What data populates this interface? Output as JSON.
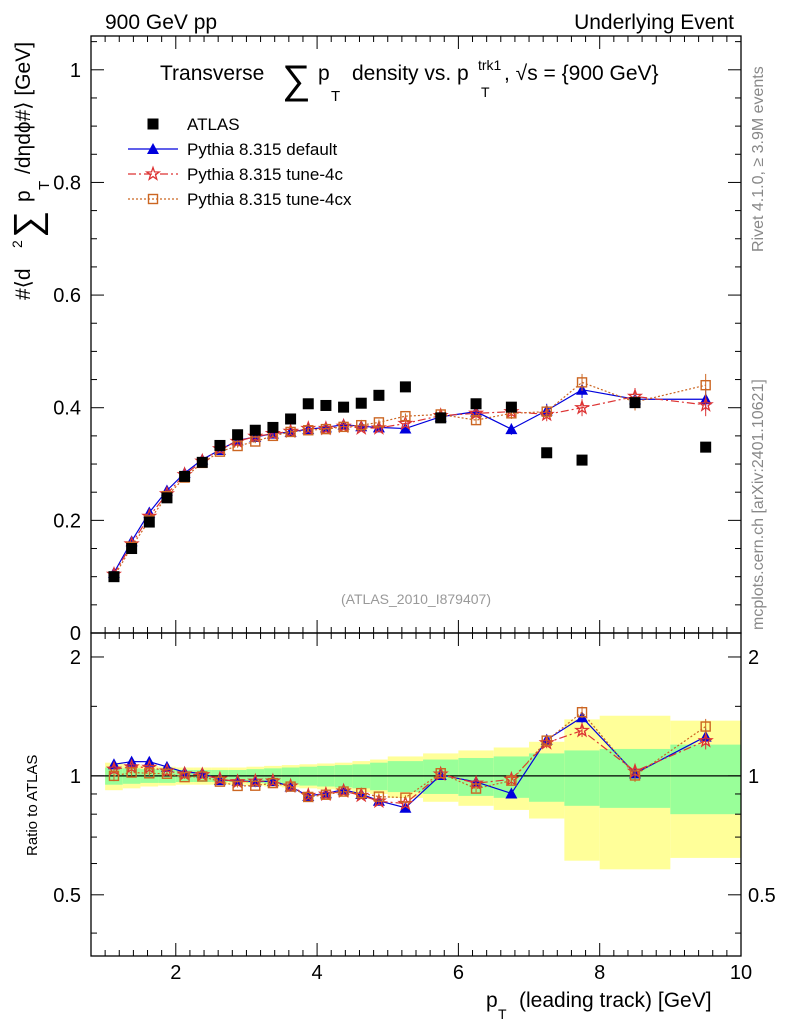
{
  "header": {
    "left": "900 GeV pp",
    "right": "Underlying Event"
  },
  "side": {
    "rivet": "Rivet 4.1.0, ≥ 3.9M events",
    "mcplots": "mcplots.cern.ch [arXiv:2401.10621]"
  },
  "chart_data": {
    "type": "scatter",
    "title_parts": {
      "prefix": "Transverse",
      "sum": "∑",
      "p": "p",
      "sub_t": "T",
      "mid": "density vs. p",
      "sup": "trk1",
      "tail": ", √s = {900 GeV}"
    },
    "ylabel_parts": {
      "a": "#⟨d",
      "sup2": "2",
      "sum": "∑",
      "p": "p",
      "sub_t": "T",
      "b": "/dηdϕ#⟩ [GeV]"
    },
    "xlabel_parts": {
      "p": "p",
      "sub_t": "T",
      "rest": "(leading track) [GeV]"
    },
    "ratio_ylabel": "Ratio to ATLAS",
    "watermark": "(ATLAS_2010_I879407)",
    "xlim": [
      0.8,
      10.0
    ],
    "ylim": [
      0,
      1.06
    ],
    "ratio_ylim": [
      0.35,
      2.3
    ],
    "x_ticks": [
      2,
      4,
      6,
      8,
      10
    ],
    "y_ticks": [
      0,
      0.2,
      0.4,
      0.6,
      0.8,
      1
    ],
    "y_tick_labels": [
      "0",
      "0.2",
      "0.4",
      "0.6",
      "0.8",
      "1"
    ],
    "ratio_ticks": [
      0.5,
      1,
      2
    ],
    "ratio_tick_labels": [
      "0.5",
      "1",
      "2"
    ],
    "bin_edges": [
      1.0,
      1.25,
      1.5,
      1.75,
      2.0,
      2.25,
      2.5,
      2.75,
      3.0,
      3.25,
      3.5,
      3.75,
      4.0,
      4.25,
      4.5,
      4.75,
      5.0,
      5.5,
      6.0,
      6.5,
      7.0,
      7.5,
      8.0,
      9.0,
      10.0
    ],
    "x": [
      1.125,
      1.375,
      1.625,
      1.875,
      2.125,
      2.375,
      2.625,
      2.875,
      3.125,
      3.375,
      3.625,
      3.875,
      4.125,
      4.375,
      4.625,
      4.875,
      5.25,
      5.75,
      6.25,
      6.75,
      7.25,
      7.75,
      8.5,
      9.5
    ],
    "bands": {
      "inner": [
        0.05,
        0.045,
        0.04,
        0.04,
        0.035,
        0.035,
        0.035,
        0.035,
        0.04,
        0.045,
        0.05,
        0.055,
        0.06,
        0.065,
        0.07,
        0.08,
        0.09,
        0.1,
        0.11,
        0.12,
        0.14,
        0.16,
        0.17,
        0.2
      ],
      "outer": [
        0.08,
        0.07,
        0.06,
        0.055,
        0.05,
        0.05,
        0.05,
        0.05,
        0.055,
        0.06,
        0.065,
        0.07,
        0.075,
        0.08,
        0.09,
        0.1,
        0.12,
        0.14,
        0.16,
        0.18,
        0.22,
        0.39,
        0.42,
        0.38
      ]
    },
    "series": [
      {
        "name": "ATLAS",
        "color": "#000000",
        "marker": "square",
        "values": [
          0.1,
          0.15,
          0.197,
          0.24,
          0.278,
          0.303,
          0.333,
          0.352,
          0.36,
          0.365,
          0.38,
          0.407,
          0.404,
          0.401,
          0.408,
          0.422,
          0.437,
          0.382,
          0.407,
          0.401,
          0.32,
          0.307,
          0.409,
          0.33
        ]
      },
      {
        "name": "Pythia 8.315 default",
        "color": "#0000dd",
        "marker": "triangle",
        "line": "solid",
        "values": [
          0.107,
          0.163,
          0.214,
          0.253,
          0.284,
          0.308,
          0.325,
          0.342,
          0.348,
          0.354,
          0.357,
          0.362,
          0.365,
          0.37,
          0.367,
          0.365,
          0.363,
          0.384,
          0.393,
          0.362,
          0.395,
          0.432,
          0.415,
          0.415
        ],
        "errors": [
          0.003,
          0.003,
          0.003,
          0.003,
          0.003,
          0.003,
          0.003,
          0.003,
          0.003,
          0.003,
          0.003,
          0.003,
          0.004,
          0.004,
          0.004,
          0.005,
          0.005,
          0.006,
          0.008,
          0.01,
          0.012,
          0.015,
          0.015,
          0.02
        ]
      },
      {
        "name": "Pythia 8.315 tune-4c",
        "color": "#dd3333",
        "marker": "star",
        "line": "dashdot",
        "values": [
          0.104,
          0.158,
          0.207,
          0.247,
          0.281,
          0.305,
          0.327,
          0.34,
          0.349,
          0.354,
          0.358,
          0.363,
          0.363,
          0.367,
          0.364,
          0.364,
          0.372,
          0.386,
          0.39,
          0.393,
          0.388,
          0.4,
          0.42,
          0.405
        ],
        "errors": [
          0.003,
          0.003,
          0.003,
          0.003,
          0.003,
          0.003,
          0.003,
          0.003,
          0.003,
          0.003,
          0.003,
          0.003,
          0.004,
          0.004,
          0.004,
          0.005,
          0.005,
          0.006,
          0.008,
          0.01,
          0.012,
          0.015,
          0.015,
          0.02
        ]
      },
      {
        "name": "Pythia 8.315 tune-4cx",
        "color": "#cc6622",
        "marker": "opensquare",
        "line": "dotted",
        "values": [
          0.1,
          0.153,
          0.2,
          0.243,
          0.276,
          0.302,
          0.322,
          0.332,
          0.34,
          0.35,
          0.357,
          0.36,
          0.362,
          0.366,
          0.369,
          0.374,
          0.385,
          0.388,
          0.378,
          0.39,
          0.393,
          0.445,
          0.41,
          0.44
        ],
        "errors": [
          0.003,
          0.003,
          0.003,
          0.003,
          0.003,
          0.003,
          0.003,
          0.003,
          0.003,
          0.003,
          0.003,
          0.003,
          0.004,
          0.004,
          0.004,
          0.005,
          0.005,
          0.006,
          0.008,
          0.01,
          0.012,
          0.015,
          0.015,
          0.02
        ]
      }
    ]
  }
}
